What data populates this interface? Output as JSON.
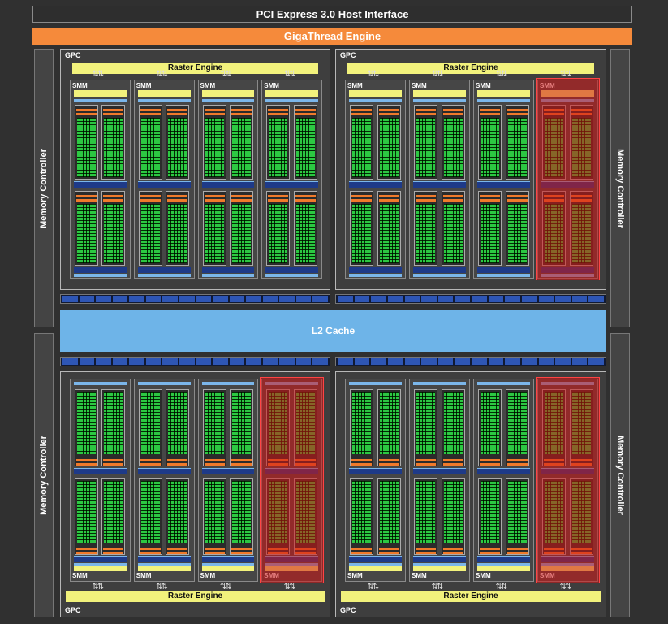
{
  "title": "PCI Express 3.0 Host Interface",
  "giga_thread": "GigaThread Engine",
  "memory_controller_label": "Memory Controller",
  "l2_cache": "L2 Cache",
  "gpc_label": "GPC",
  "raster_engine": "Raster Engine",
  "smm_label": "SMM",
  "arrow_glyph": "⇅⇅",
  "colors": {
    "background": "#303030",
    "giga_thread": "#f58a3b",
    "raster": "#f2f27c",
    "l2": "#6eb4e8",
    "core": "#2cc842",
    "disabled_overlay": "#d21414"
  },
  "gpcs": [
    {
      "position": "top-left",
      "smm_count": 4,
      "disabled_smm": []
    },
    {
      "position": "top-right",
      "smm_count": 4,
      "disabled_smm": [
        4
      ]
    },
    {
      "position": "bottom-left",
      "smm_count": 4,
      "disabled_smm": [
        4
      ]
    },
    {
      "position": "bottom-right",
      "smm_count": 4,
      "disabled_smm": [
        4
      ]
    }
  ]
}
